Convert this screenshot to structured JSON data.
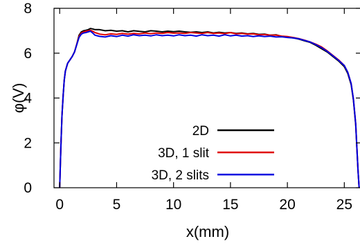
{
  "chart_data": {
    "type": "line",
    "title": "",
    "xlabel": "x(mm)",
    "ylabel": "φ(V)",
    "xlim": [
      -0.5,
      26.5
    ],
    "ylim": [
      0,
      8
    ],
    "xticks": [
      0,
      5,
      10,
      15,
      20,
      25
    ],
    "yticks": [
      0,
      2,
      4,
      6,
      8
    ],
    "grid": false,
    "legend_position": "center-right",
    "series": [
      {
        "name": "2D",
        "color": "#000000",
        "x": [
          0,
          0.1,
          0.2,
          0.3,
          0.4,
          0.5,
          0.7,
          0.9,
          1.1,
          1.3,
          1.5,
          1.7,
          1.9,
          2.1,
          2.3,
          2.5,
          2.7,
          2.9,
          3.1,
          3.5,
          4,
          4.5,
          5,
          5.5,
          6,
          6.5,
          7,
          7.5,
          8,
          8.5,
          9,
          9.5,
          10,
          10.5,
          11,
          11.5,
          12,
          12.5,
          13,
          13.5,
          14,
          14.5,
          15,
          15.5,
          16,
          16.5,
          17,
          17.5,
          18,
          18.5,
          19,
          19.5,
          20,
          20.5,
          21,
          21.5,
          22,
          22.5,
          23,
          23.5,
          24,
          24.5,
          25,
          25.3,
          25.6,
          25.8,
          26.0,
          26.1,
          26.2,
          26.3
        ],
        "y": [
          0,
          1.8,
          3.2,
          4.1,
          4.8,
          5.2,
          5.55,
          5.7,
          5.85,
          6.05,
          6.4,
          6.8,
          6.95,
          7.0,
          7.02,
          7.05,
          7.1,
          7.08,
          7.05,
          7.05,
          7.0,
          7.02,
          6.98,
          7.0,
          6.95,
          7.0,
          6.97,
          6.95,
          7.0,
          6.98,
          6.95,
          6.98,
          6.96,
          6.98,
          6.95,
          6.93,
          6.95,
          6.92,
          6.95,
          6.9,
          6.93,
          6.9,
          6.92,
          6.88,
          6.9,
          6.86,
          6.88,
          6.84,
          6.85,
          6.8,
          6.82,
          6.75,
          6.72,
          6.68,
          6.63,
          6.55,
          6.48,
          6.35,
          6.2,
          6.05,
          5.85,
          5.65,
          5.4,
          5.1,
          4.6,
          3.9,
          2.8,
          1.8,
          0.8,
          0
        ]
      },
      {
        "name": "3D, 1 slit",
        "color": "#e00000",
        "x": [
          0,
          0.1,
          0.2,
          0.3,
          0.4,
          0.5,
          0.7,
          0.9,
          1.1,
          1.3,
          1.5,
          1.7,
          1.9,
          2.1,
          2.3,
          2.5,
          2.7,
          2.9,
          3.1,
          3.5,
          4,
          4.5,
          5,
          5.5,
          6,
          6.5,
          7,
          7.5,
          8,
          8.5,
          9,
          9.5,
          10,
          10.5,
          11,
          11.5,
          12,
          12.5,
          13,
          13.5,
          14,
          14.5,
          15,
          15.5,
          16,
          16.5,
          17,
          17.5,
          18,
          18.5,
          19,
          19.5,
          20,
          20.5,
          21,
          21.5,
          22,
          22.5,
          23,
          23.5,
          24,
          24.5,
          25,
          25.3,
          25.6,
          25.8,
          26.0,
          26.1,
          26.2,
          26.3
        ],
        "y": [
          0,
          1.8,
          3.2,
          4.1,
          4.8,
          5.2,
          5.55,
          5.7,
          5.85,
          6.05,
          6.4,
          6.75,
          6.9,
          6.95,
          6.98,
          7.0,
          7.02,
          6.98,
          6.92,
          6.85,
          6.82,
          6.86,
          6.84,
          6.88,
          6.85,
          6.88,
          6.86,
          6.9,
          6.87,
          6.9,
          6.88,
          6.92,
          6.89,
          6.9,
          6.88,
          6.92,
          6.9,
          6.88,
          6.92,
          6.88,
          6.9,
          6.87,
          6.92,
          6.86,
          6.88,
          6.85,
          6.86,
          6.82,
          6.83,
          6.8,
          6.8,
          6.76,
          6.74,
          6.7,
          6.65,
          6.58,
          6.5,
          6.4,
          6.28,
          6.1,
          5.9,
          5.7,
          5.45,
          5.15,
          4.65,
          3.95,
          2.85,
          1.85,
          0.8,
          0
        ]
      },
      {
        "name": "3D, 2 slits",
        "color": "#0000e0",
        "x": [
          0,
          0.1,
          0.2,
          0.3,
          0.4,
          0.5,
          0.7,
          0.9,
          1.1,
          1.3,
          1.5,
          1.7,
          1.9,
          2.1,
          2.3,
          2.5,
          2.7,
          2.9,
          3.1,
          3.5,
          4,
          4.5,
          5,
          5.5,
          6,
          6.5,
          7,
          7.5,
          8,
          8.5,
          9,
          9.5,
          10,
          10.5,
          11,
          11.5,
          12,
          12.5,
          13,
          13.5,
          14,
          14.5,
          15,
          15.5,
          16,
          16.5,
          17,
          17.5,
          18,
          18.5,
          19,
          19.5,
          20,
          20.5,
          21,
          21.5,
          22,
          22.5,
          23,
          23.5,
          24,
          24.5,
          25,
          25.3,
          25.6,
          25.8,
          26.0,
          26.1,
          26.2,
          26.3
        ],
        "y": [
          0,
          1.8,
          3.2,
          4.1,
          4.8,
          5.2,
          5.55,
          5.7,
          5.85,
          6.05,
          6.38,
          6.7,
          6.85,
          6.9,
          6.92,
          6.95,
          6.98,
          6.9,
          6.8,
          6.75,
          6.72,
          6.78,
          6.74,
          6.8,
          6.76,
          6.82,
          6.78,
          6.8,
          6.77,
          6.82,
          6.78,
          6.8,
          6.77,
          6.82,
          6.78,
          6.8,
          6.76,
          6.82,
          6.78,
          6.8,
          6.76,
          6.82,
          6.77,
          6.8,
          6.76,
          6.78,
          6.74,
          6.77,
          6.74,
          6.76,
          6.72,
          6.73,
          6.7,
          6.68,
          6.64,
          6.57,
          6.5,
          6.38,
          6.25,
          6.08,
          5.88,
          5.68,
          5.45,
          5.15,
          4.65,
          3.95,
          2.85,
          1.85,
          0.8,
          0
        ]
      }
    ]
  }
}
